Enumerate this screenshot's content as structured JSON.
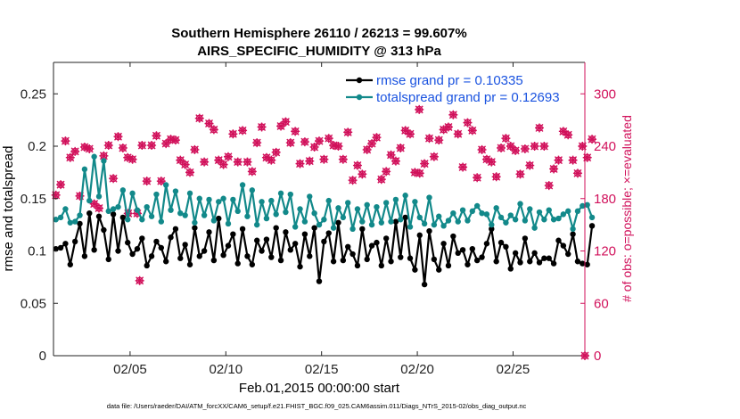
{
  "chart_data": {
    "type": "line",
    "title_line1": "Southern Hemisphere 26110 / 26213 = 99.607%",
    "title_line2": "AIRS_SPECIFIC_HUMIDITY @ 313 hPa",
    "xlabel": "Feb.01,2015 00:00:00 start",
    "ylabel": "rmse and totalspread",
    "y2label": "# of obs: o=possible; ×=evaluated",
    "footer": "data file: /Users/raeder/DAI/ATM_forcXX/CAM6_setup/f.e21.FHIST_BGC.f09_025.CAM6assim.011/Diags_NTrS_2015-02/obs_diag_output.nc",
    "xlim": [
      1,
      28.75
    ],
    "ylim": [
      0,
      0.28
    ],
    "y2lim": [
      0,
      336
    ],
    "x_ticks": [
      5,
      10,
      15,
      20,
      25
    ],
    "x_tick_labels": [
      "02/05",
      "02/10",
      "02/15",
      "02/20",
      "02/25"
    ],
    "y_ticks": [
      0,
      0.05,
      0.1,
      0.15,
      0.2,
      0.25
    ],
    "y_tick_labels": [
      "0",
      "0.05",
      "0.1",
      "0.15",
      "0.2",
      "0.25"
    ],
    "y2_ticks": [
      0,
      60,
      120,
      180,
      240,
      300
    ],
    "y2_tick_labels": [
      "0",
      "60",
      "120",
      "180",
      "240",
      "300"
    ],
    "x_start": 1.125,
    "x_step": 0.25,
    "series": [
      {
        "name": "rmse grand pr = 0.10335",
        "color": "#000000",
        "values": [
          0.102,
          0.103,
          0.107,
          0.087,
          0.109,
          0.126,
          0.095,
          0.136,
          0.101,
          0.133,
          0.12,
          0.092,
          0.135,
          0.1,
          0.132,
          0.108,
          0.097,
          0.102,
          0.112,
          0.086,
          0.095,
          0.109,
          0.103,
          0.09,
          0.113,
          0.121,
          0.093,
          0.106,
          0.087,
          0.122,
          0.095,
          0.1,
          0.118,
          0.091,
          0.131,
          0.096,
          0.105,
          0.116,
          0.088,
          0.121,
          0.095,
          0.087,
          0.11,
          0.1,
          0.111,
          0.094,
          0.122,
          0.091,
          0.118,
          0.101,
          0.107,
          0.085,
          0.116,
          0.095,
          0.122,
          0.071,
          0.109,
          0.117,
          0.09,
          0.127,
          0.091,
          0.104,
          0.097,
          0.086,
          0.121,
          0.092,
          0.105,
          0.108,
          0.086,
          0.112,
          0.09,
          0.128,
          0.094,
          0.132,
          0.093,
          0.082,
          0.115,
          0.068,
          0.119,
          0.092,
          0.082,
          0.107,
          0.086,
          0.114,
          0.098,
          0.101,
          0.087,
          0.102,
          0.091,
          0.094,
          0.107,
          0.121,
          0.09,
          0.108,
          0.104,
          0.083,
          0.098,
          0.089,
          0.112,
          0.09,
          0.098,
          0.089,
          0.093,
          0.093,
          0.088,
          0.11,
          0.105,
          0.097,
          0.116,
          0.09,
          0.088,
          0.087,
          0.124
        ],
        "marker": "circle"
      },
      {
        "name": "totalspread grand pr = 0.12693",
        "color": "#12898a",
        "values": [
          0.13,
          0.132,
          0.14,
          0.127,
          0.128,
          0.134,
          0.178,
          0.148,
          0.19,
          0.152,
          0.186,
          0.138,
          0.14,
          0.142,
          0.158,
          0.13,
          0.155,
          0.139,
          0.13,
          0.142,
          0.133,
          0.154,
          0.128,
          0.163,
          0.139,
          0.157,
          0.136,
          0.134,
          0.155,
          0.127,
          0.15,
          0.134,
          0.149,
          0.129,
          0.147,
          0.15,
          0.126,
          0.149,
          0.138,
          0.163,
          0.133,
          0.158,
          0.125,
          0.147,
          0.131,
          0.148,
          0.135,
          0.155,
          0.137,
          0.154,
          0.123,
          0.14,
          0.128,
          0.152,
          0.136,
          0.125,
          0.13,
          0.148,
          0.122,
          0.141,
          0.132,
          0.146,
          0.121,
          0.14,
          0.128,
          0.144,
          0.125,
          0.142,
          0.127,
          0.146,
          0.128,
          0.149,
          0.13,
          0.153,
          0.123,
          0.147,
          0.132,
          0.126,
          0.151,
          0.125,
          0.133,
          0.124,
          0.129,
          0.136,
          0.128,
          0.139,
          0.129,
          0.138,
          0.143,
          0.136,
          0.135,
          0.125,
          0.141,
          0.132,
          0.127,
          0.134,
          0.13,
          0.145,
          0.129,
          0.14,
          0.122,
          0.137,
          0.13,
          0.139,
          0.13,
          0.131,
          0.135,
          0.138,
          0.121,
          0.138,
          0.143,
          0.144,
          0.132
        ],
        "marker": "circle"
      }
    ],
    "obs_counts": {
      "name": "# of obs",
      "color": "#d1115b",
      "values": [
        184,
        196,
        246,
        227,
        234,
        183,
        239,
        237,
        174,
        169,
        229,
        241,
        203,
        251,
        238,
        227,
        225,
        163,
        241,
        200,
        241,
        252,
        200,
        243,
        248,
        247,
        224,
        219,
        210,
        236,
        272,
        222,
        266,
        259,
        224,
        219,
        228,
        254,
        222,
        258,
        222,
        211,
        244,
        262,
        227,
        224,
        233,
        263,
        268,
        244,
        257,
        220,
        245,
        223,
        239,
        246,
        225,
        249,
        241,
        240,
        225,
        256,
        201,
        218,
        208,
        236,
        243,
        250,
        202,
        211,
        230,
        223,
        238,
        258,
        254,
        210,
        209,
        220,
        249,
        228,
        247,
        259,
        262,
        276,
        254,
        216,
        267,
        258,
        204,
        236,
        225,
        222,
        205,
        238,
        249,
        240,
        235,
        208,
        237,
        218,
        240,
        261,
        240,
        195,
        214,
        224,
        257,
        253,
        224,
        209,
        240,
        227,
        248
      ],
      "outliers": [
        {
          "x": 5.5,
          "y": 86
        },
        {
          "x": 4.9,
          "y": 163
        },
        {
          "x": 20.1,
          "y": 282
        },
        {
          "x": 28.75,
          "y": 0
        }
      ]
    },
    "legend_position": "top-right",
    "grid": false
  }
}
